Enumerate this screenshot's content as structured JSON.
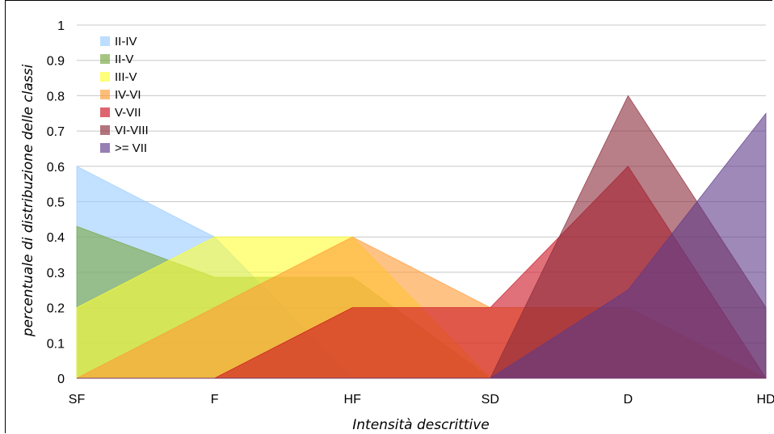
{
  "chart_data": {
    "type": "area",
    "categories": [
      "SF",
      "F",
      "HF",
      "SD",
      "D",
      "HD"
    ],
    "xlabel": "Intensità descrittive",
    "ylabel": "percentuale di distribuzione delle classi",
    "ylim": [
      0,
      1
    ],
    "yticks": [
      "0",
      "0.1",
      "0.2",
      "0.3",
      "0.4",
      "0.5",
      "0.6",
      "0.7",
      "0.8",
      "0.9",
      "1"
    ],
    "grid": true,
    "legend_position": "top-left",
    "series": [
      {
        "name": "II-IV",
        "color": "#99ccff",
        "values": [
          0.6,
          0.4,
          0,
          0,
          0,
          0
        ]
      },
      {
        "name": "II-V",
        "color": "#77a640",
        "values": [
          0.43,
          0.286,
          0.286,
          0,
          0,
          0
        ]
      },
      {
        "name": "III-V",
        "color": "#ffff33",
        "values": [
          0.2,
          0.4,
          0.4,
          0,
          0,
          0
        ]
      },
      {
        "name": "IV-VI",
        "color": "#ff9933",
        "values": [
          0,
          0.2,
          0.4,
          0.2,
          0.2,
          0
        ]
      },
      {
        "name": "V-VII",
        "color": "#cc1122",
        "values": [
          0,
          0,
          0.2,
          0.2,
          0.6,
          0
        ]
      },
      {
        "name": "VI-VIII",
        "color": "#8b2a38",
        "values": [
          0,
          0,
          0,
          0,
          0.8,
          0.2
        ]
      },
      {
        "name": ">= VII",
        "color": "#5e3a8a",
        "values": [
          0,
          0,
          0,
          0,
          0.25,
          0.75
        ]
      }
    ]
  }
}
